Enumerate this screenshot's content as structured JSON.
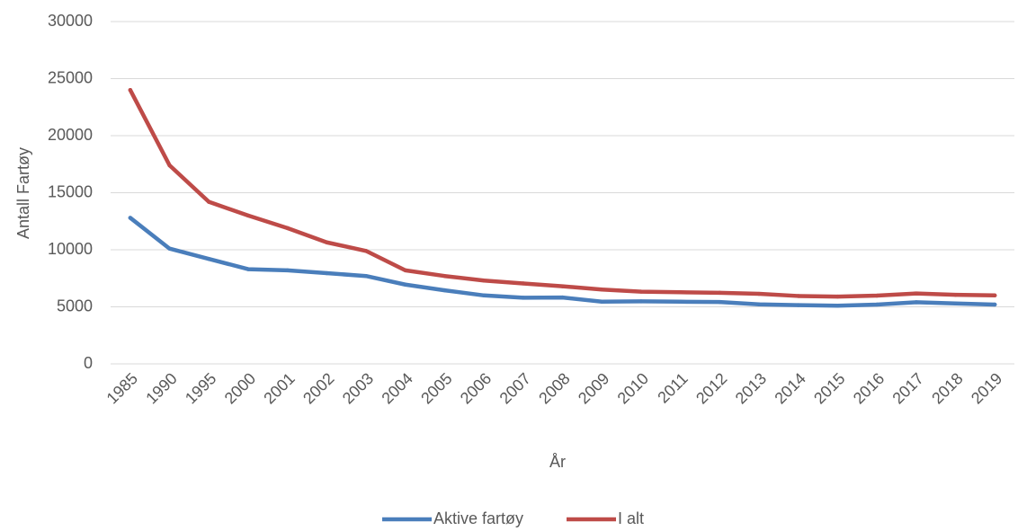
{
  "chart_data": {
    "type": "line",
    "title": "",
    "xlabel": "År",
    "ylabel": "Antall Fartøy",
    "ylim": [
      0,
      30000
    ],
    "yticks": [
      "0",
      "5000",
      "10000",
      "15000",
      "20000",
      "25000",
      "30000"
    ],
    "categories": [
      "1985",
      "1990",
      "1995",
      "2000",
      "2001",
      "2002",
      "2003",
      "2004",
      "2005",
      "2006",
      "2007",
      "2008",
      "2009",
      "2010",
      "2011",
      "2012",
      "2013",
      "2014",
      "2015",
      "2016",
      "2017",
      "2018",
      "2019"
    ],
    "series": [
      {
        "name": "Aktive fartøy",
        "color": "#4a7ebb",
        "values": [
          12800,
          10100,
          9200,
          8300,
          8200,
          7950,
          7700,
          6950,
          6450,
          6000,
          5800,
          5820,
          5450,
          5480,
          5450,
          5420,
          5220,
          5150,
          5100,
          5200,
          5400,
          5300,
          5200
        ]
      },
      {
        "name": "I alt",
        "color": "#be4b48",
        "values": [
          24000,
          17400,
          14200,
          13000,
          11900,
          10650,
          9900,
          8200,
          7700,
          7300,
          7050,
          6800,
          6520,
          6330,
          6280,
          6230,
          6140,
          5950,
          5900,
          5980,
          6170,
          6050,
          6000
        ]
      }
    ],
    "grid": true,
    "gridColor": "#d9d9d9",
    "legend_position": "bottom"
  }
}
